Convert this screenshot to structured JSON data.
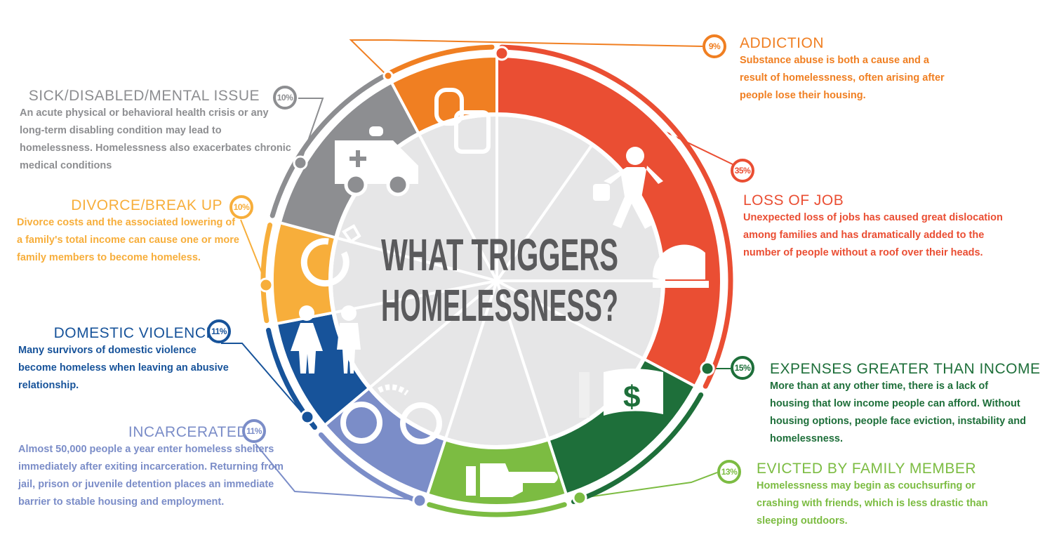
{
  "chart_data": {
    "type": "pie",
    "title_lines": [
      "WHAT TRIGGERS",
      "HOMELESSNESS?"
    ],
    "slices": [
      {
        "label": "ADDICTION",
        "value": 9,
        "pct_label": "9%",
        "color": "#F07F22",
        "icon": "backpack-icon",
        "description": "Substance abuse is both a cause and a result of homelessness, often arising after people lose their housing."
      },
      {
        "label": "LOSS OF JOB",
        "value": 35,
        "pct_label": "35%",
        "color": "#EA4E33",
        "icon": "worker-hardhat-icon",
        "description": "Unexpected loss of jobs has caused great dislocation among families and has dramatically added to the number of people without a roof over their heads."
      },
      {
        "label": "EXPENSES GREATER THAN INCOME",
        "value": 15,
        "pct_label": "15%",
        "color": "#1E6F3A",
        "icon": "money-icon",
        "description": "More than at any other time, there is a lack of housing that low income people can afford. Without housing options, people face eviction, instability and homelessness."
      },
      {
        "label": "EVICTED BY FAMILY MEMBER",
        "value": 13,
        "pct_label": "13%",
        "color": "#7CBC42",
        "icon": "pointing-hand-icon",
        "description": "Homelessness may begin as couchsurfing or crashing with friends, which is less drastic than sleeping outdoors."
      },
      {
        "label": "INCARCERATED",
        "value": 11,
        "pct_label": "11%",
        "color": "#7B8DC8",
        "icon": "handcuffs-icon",
        "description": "Almost 50,000 people a year enter homeless shelters immediately after exiting incarceration. Returning from jail, prison or juvenile detention places an immediate barrier to stable housing and employment."
      },
      {
        "label": "DOMESTIC VIOLENCE",
        "value": 11,
        "pct_label": "11%",
        "color": "#17539A",
        "icon": "woman-man-icon",
        "description": "Many survivors of domestic violence become homeless when leaving an abusive relationship."
      },
      {
        "label": "DIVORCE/BREAK UP",
        "value": 10,
        "pct_label": "10%",
        "color": "#F7AE3B",
        "icon": "ring-icon",
        "description": "Divorce costs and the associated lowering of a family's total income can cause one or more family members to become homeless."
      },
      {
        "label": "SICK/DISABLED/MENTAL ISSUE",
        "value": 10,
        "pct_label": "10%",
        "color": "#8D8E91",
        "icon": "ambulance-icon",
        "description": "An acute physical or behavioral health crisis or any long-term disabling condition may lead to homelessness. Homelessness also exacerbates chronic medical conditions"
      }
    ]
  }
}
